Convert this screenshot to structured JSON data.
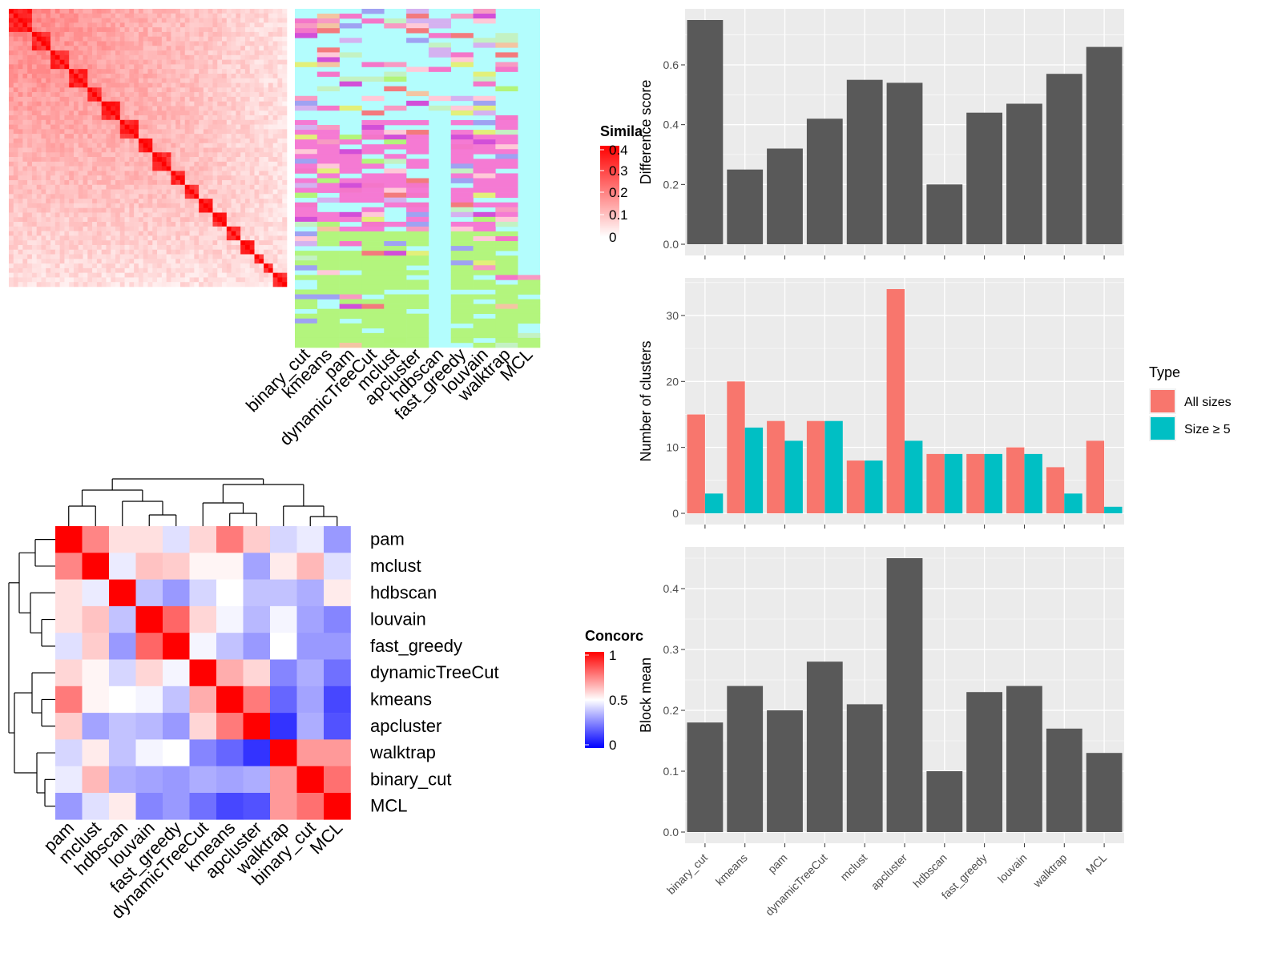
{
  "colors": {
    "panel_bg": "#ebebeb",
    "grid": "#ffffff",
    "bar_gray": "#595959",
    "all_sizes": "#f8766d",
    "size5": "#00bfc4",
    "sim_high": "#ff0000",
    "conc_low": "#0000ff",
    "conc_mid": "#ffffff",
    "conc_high": "#ff0000"
  },
  "similarity_legend": {
    "title": "Simila",
    "ticks": [
      "0.4",
      "0.3",
      "0.2",
      "0.1",
      "0"
    ]
  },
  "concordance_legend": {
    "title": "Concorc",
    "ticks": [
      "1",
      "0.5",
      "0"
    ]
  },
  "chart_data": [
    {
      "type": "heatmap",
      "name": "similarity-heatmap",
      "legend_title": "Simila",
      "color_range": [
        0,
        0.4
      ]
    },
    {
      "type": "heatmap",
      "name": "cluster-membership",
      "columns": [
        "binary_cut",
        "kmeans",
        "pam",
        "dynamicTreeCut",
        "mclust",
        "apcluster",
        "hdbscan",
        "fast_greedy",
        "louvain",
        "walktrap",
        "MCL"
      ]
    },
    {
      "type": "heatmap",
      "name": "concordance-heatmap",
      "legend_title": "Concorc",
      "methods": [
        "pam",
        "mclust",
        "hdbscan",
        "louvain",
        "fast_greedy",
        "dynamicTreeCut",
        "kmeans",
        "apcluster",
        "walktrap",
        "binary_cut",
        "MCL"
      ],
      "values": [
        [
          1.0,
          0.74,
          0.56,
          0.56,
          0.44,
          0.58,
          0.76,
          0.6,
          0.42,
          0.46,
          0.3
        ],
        [
          0.74,
          1.0,
          0.46,
          0.62,
          0.6,
          0.52,
          0.52,
          0.32,
          0.54,
          0.64,
          0.44
        ],
        [
          0.56,
          0.46,
          1.0,
          0.38,
          0.3,
          0.42,
          0.5,
          0.38,
          0.38,
          0.34,
          0.54
        ],
        [
          0.56,
          0.62,
          0.38,
          1.0,
          0.8,
          0.58,
          0.48,
          0.36,
          0.48,
          0.32,
          0.26
        ],
        [
          0.44,
          0.6,
          0.3,
          0.8,
          1.0,
          0.48,
          0.38,
          0.3,
          0.5,
          0.3,
          0.3
        ],
        [
          0.58,
          0.52,
          0.42,
          0.58,
          0.48,
          1.0,
          0.66,
          0.58,
          0.26,
          0.34,
          0.22
        ],
        [
          0.76,
          0.52,
          0.5,
          0.48,
          0.38,
          0.66,
          1.0,
          0.76,
          0.2,
          0.32,
          0.14
        ],
        [
          0.6,
          0.32,
          0.38,
          0.36,
          0.3,
          0.58,
          0.76,
          1.0,
          0.1,
          0.34,
          0.16
        ],
        [
          0.42,
          0.54,
          0.38,
          0.48,
          0.5,
          0.26,
          0.2,
          0.1,
          1.0,
          0.7,
          0.7
        ],
        [
          0.46,
          0.64,
          0.34,
          0.32,
          0.3,
          0.34,
          0.32,
          0.34,
          0.7,
          1.0,
          0.78
        ],
        [
          0.3,
          0.44,
          0.54,
          0.26,
          0.3,
          0.22,
          0.14,
          0.16,
          0.7,
          0.78,
          1.0
        ]
      ],
      "color_range": [
        0,
        1
      ]
    },
    {
      "type": "bar",
      "name": "difference-score",
      "categories": [
        "binary_cut",
        "kmeans",
        "pam",
        "dynamicTreeCut",
        "mclust",
        "apcluster",
        "hdbscan",
        "fast_greedy",
        "louvain",
        "walktrap",
        "MCL"
      ],
      "values": [
        0.75,
        0.25,
        0.32,
        0.42,
        0.55,
        0.54,
        0.2,
        0.44,
        0.47,
        0.57,
        0.66
      ],
      "ylabel": "Difference score",
      "ylim": [
        0,
        0.75
      ],
      "yticks": [
        0.0,
        0.2,
        0.4,
        0.6
      ],
      "ytick_labels": [
        "0.0",
        "0.2",
        "0.4",
        "0.6"
      ]
    },
    {
      "type": "bar",
      "name": "number-of-clusters",
      "categories": [
        "binary_cut",
        "kmeans",
        "pam",
        "dynamicTreeCut",
        "mclust",
        "apcluster",
        "hdbscan",
        "fast_greedy",
        "louvain",
        "walktrap",
        "MCL"
      ],
      "series": [
        {
          "name": "All sizes",
          "values": [
            15,
            20,
            14,
            14,
            8,
            34,
            9,
            9,
            10,
            7,
            11
          ]
        },
        {
          "name": "Size ≥ 5",
          "values": [
            3,
            13,
            11,
            14,
            8,
            11,
            9,
            9,
            9,
            3,
            1
          ]
        }
      ],
      "ylabel": "Number of clusters",
      "ylim": [
        0,
        34
      ],
      "yticks": [
        0,
        10,
        20,
        30
      ],
      "ytick_labels": [
        "0",
        "10",
        "20",
        "30"
      ],
      "legend_title": "Type",
      "legend_position": "right"
    },
    {
      "type": "bar",
      "name": "block-mean",
      "categories": [
        "binary_cut",
        "kmeans",
        "pam",
        "dynamicTreeCut",
        "mclust",
        "apcluster",
        "hdbscan",
        "fast_greedy",
        "louvain",
        "walktrap",
        "MCL"
      ],
      "values": [
        0.18,
        0.24,
        0.2,
        0.28,
        0.21,
        0.45,
        0.1,
        0.23,
        0.24,
        0.17,
        0.13
      ],
      "ylabel": "Block mean",
      "ylim": [
        0,
        0.45
      ],
      "yticks": [
        0.0,
        0.1,
        0.2,
        0.3,
        0.4
      ],
      "ytick_labels": [
        "0.0",
        "0.1",
        "0.2",
        "0.3",
        "0.4"
      ]
    }
  ]
}
